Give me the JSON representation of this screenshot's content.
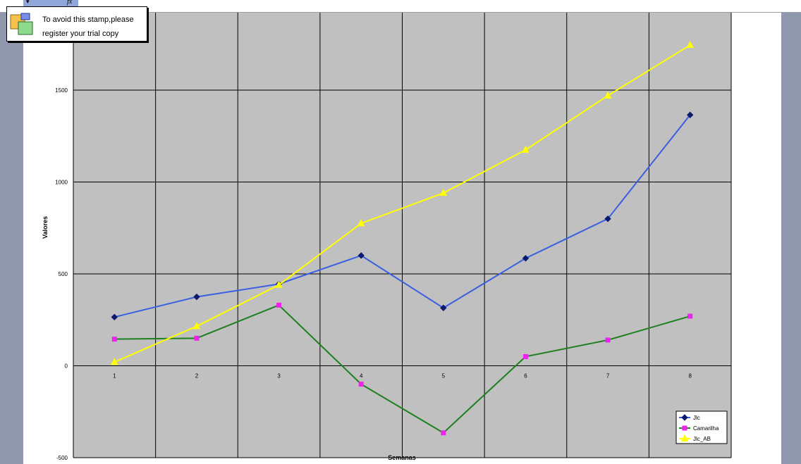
{
  "stamp": {
    "text": "To avoid this stamp,please\nregister your trial copy"
  },
  "toolbar": {
    "dropdown_glyph": "▾",
    "formula_icon": "fx-icon",
    "formula_glyph": "fx"
  },
  "colors": {
    "plot_bg": "#c0c0c0",
    "jlc": "#3a5fe0",
    "jlc_marker": "#0b1a6e",
    "camarilha": "#1d7f1d",
    "camarilha_marker": "#ee22ee",
    "jlc_ab": "#ffff00"
  },
  "chart_data": {
    "type": "line",
    "title": "",
    "xlabel": "Semanas",
    "ylabel": "Valores",
    "categories": [
      "1",
      "2",
      "3",
      "4",
      "5",
      "6",
      "7",
      "8"
    ],
    "ylim": [
      -500,
      1500
    ],
    "yticks": [
      "-500",
      "0",
      "500",
      "1000",
      "1500"
    ],
    "grid": true,
    "legend_position": "bottom-right",
    "series": [
      {
        "name": "Jlc",
        "color": "#3a5fe0",
        "marker": "diamond",
        "marker_color": "#0b1a6e",
        "values": [
          265,
          375,
          445,
          600,
          315,
          585,
          800,
          1365
        ]
      },
      {
        "name": "Camarilha",
        "color": "#1d7f1d",
        "marker": "square",
        "marker_color": "#ee22ee",
        "values": [
          145,
          150,
          330,
          -100,
          -365,
          50,
          140,
          270
        ]
      },
      {
        "name": "Jlc_AB",
        "color": "#ffff00",
        "marker": "triangle",
        "marker_color": "#ffff00",
        "values": [
          20,
          215,
          440,
          775,
          940,
          1175,
          1470,
          1745
        ]
      }
    ]
  }
}
